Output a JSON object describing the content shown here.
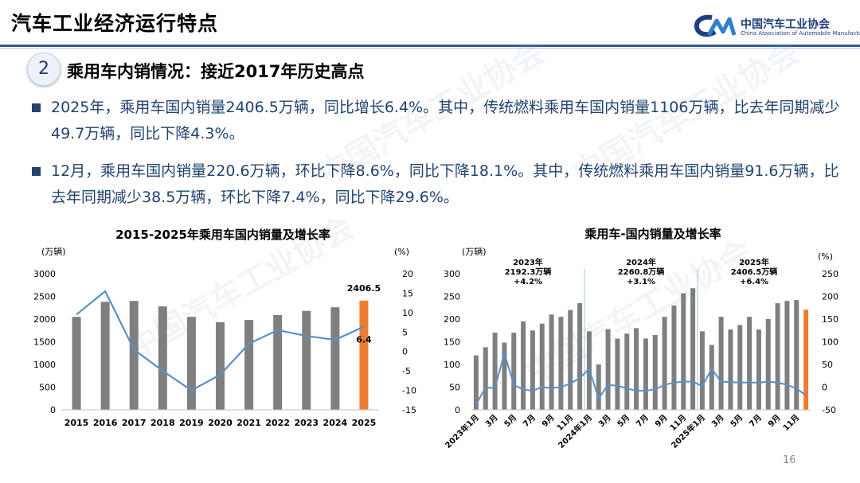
{
  "page": {
    "title": "汽车工业经济运行特点",
    "logo_cn": "中国汽车工业协会",
    "logo_en": "China Association of Automobile Manufacturers",
    "section_number": "2",
    "section_title": "乘用车内销情况：接近2017年历史高点",
    "bullet1": "2025年，乘用车国内销量2406.5万辆，同比增长6.4%。其中，传统燃料乘用车国内销量1106万辆，比去年同期减少49.7万辆，同比下降4.3%。",
    "bullet2": "12月，乘用车国内销量220.6万辆，环比下降8.6%，同比下降18.1%。其中，传统燃料乘用车国内销量91.6万辆，比去年同期减少38.5万辆，环比下降7.4%，同比下降29.6%。",
    "page_number": "16",
    "watermark": "中国汽车工业协会"
  },
  "colors": {
    "bar": "#7f7f7f",
    "highlight": "#ed7d31",
    "line": "#5b8fc9",
    "text_blue": "#23436e"
  },
  "chart_data": [
    {
      "type": "bar",
      "title": "2015-2025年乘用车国内销量及增长率",
      "left_unit": "(万辆)",
      "right_unit": "(%)",
      "categories": [
        "2015",
        "2016",
        "2017",
        "2018",
        "2019",
        "2020",
        "2021",
        "2022",
        "2023",
        "2024",
        "2025"
      ],
      "series": [
        {
          "name": "国内销量",
          "axis": "left",
          "values": [
            2050,
            2380,
            2400,
            2280,
            2050,
            1930,
            1980,
            2090,
            2180,
            2260,
            2406.5
          ]
        },
        {
          "name": "增长率",
          "axis": "right",
          "type": "line",
          "values": [
            9.5,
            15.5,
            0.5,
            -5,
            -10,
            -6,
            2,
            5.5,
            4,
            3,
            6.4
          ]
        }
      ],
      "left_ylim": [
        0,
        3000
      ],
      "left_ticks": [
        "0",
        "500",
        "1000",
        "1500",
        "2000",
        "2500",
        "3000"
      ],
      "right_ylim": [
        -15,
        20
      ],
      "right_ticks": [
        "-15",
        "-10",
        "-5",
        "0",
        "5",
        "10",
        "15",
        "20"
      ],
      "annotations": [
        {
          "label": "2406.5",
          "category": "2025",
          "series": "国内销量"
        },
        {
          "label": "6.4",
          "category": "2025",
          "series": "增长率"
        }
      ],
      "highlight_category": "2025"
    },
    {
      "type": "bar",
      "title": "乘用车-国内销量及增长率",
      "left_unit": "(万辆)",
      "right_unit": "(%)",
      "months": 36,
      "tick_labels": [
        "2023年1月",
        "3月",
        "5月",
        "7月",
        "9月",
        "11月",
        "2024年1月",
        "3月",
        "5月",
        "7月",
        "9月",
        "11月",
        "2025年1月",
        "3月",
        "5月",
        "7月",
        "9月",
        "11月"
      ],
      "series": [
        {
          "name": "国内销量",
          "axis": "left",
          "values": [
            120,
            138,
            170,
            148,
            170,
            195,
            175,
            190,
            210,
            205,
            220,
            235,
            173,
            100,
            178,
            157,
            168,
            180,
            157,
            165,
            205,
            230,
            257,
            268,
            173,
            143,
            205,
            177,
            187,
            205,
            177,
            200,
            235,
            240,
            242,
            220.6
          ]
        },
        {
          "name": "增长率",
          "axis": "right",
          "type": "line",
          "values": [
            -38,
            -1,
            -2,
            75,
            5,
            -5,
            -8,
            0,
            -2,
            0,
            8,
            20,
            40,
            -25,
            5,
            3,
            -3,
            -8,
            -8,
            -5,
            5,
            10,
            12,
            12,
            2,
            40,
            12,
            11,
            10,
            10,
            10,
            12,
            10,
            5,
            -3,
            -18
          ]
        }
      ],
      "left_ylim": [
        0,
        300
      ],
      "left_ticks": [
        "0",
        "50",
        "100",
        "150",
        "200",
        "250",
        "300"
      ],
      "right_ylim": [
        -50,
        250
      ],
      "right_ticks": [
        "-50",
        "0",
        "50",
        "100",
        "150",
        "200",
        "250"
      ],
      "year_annotations": [
        {
          "label": "2023年\n2192.3万辆\n+4.2%"
        },
        {
          "label": "2024年\n2260.8万辆\n+3.1%"
        },
        {
          "label": "2025年\n2406.5万辆\n+6.4%"
        }
      ],
      "highlight_index": 35
    }
  ]
}
